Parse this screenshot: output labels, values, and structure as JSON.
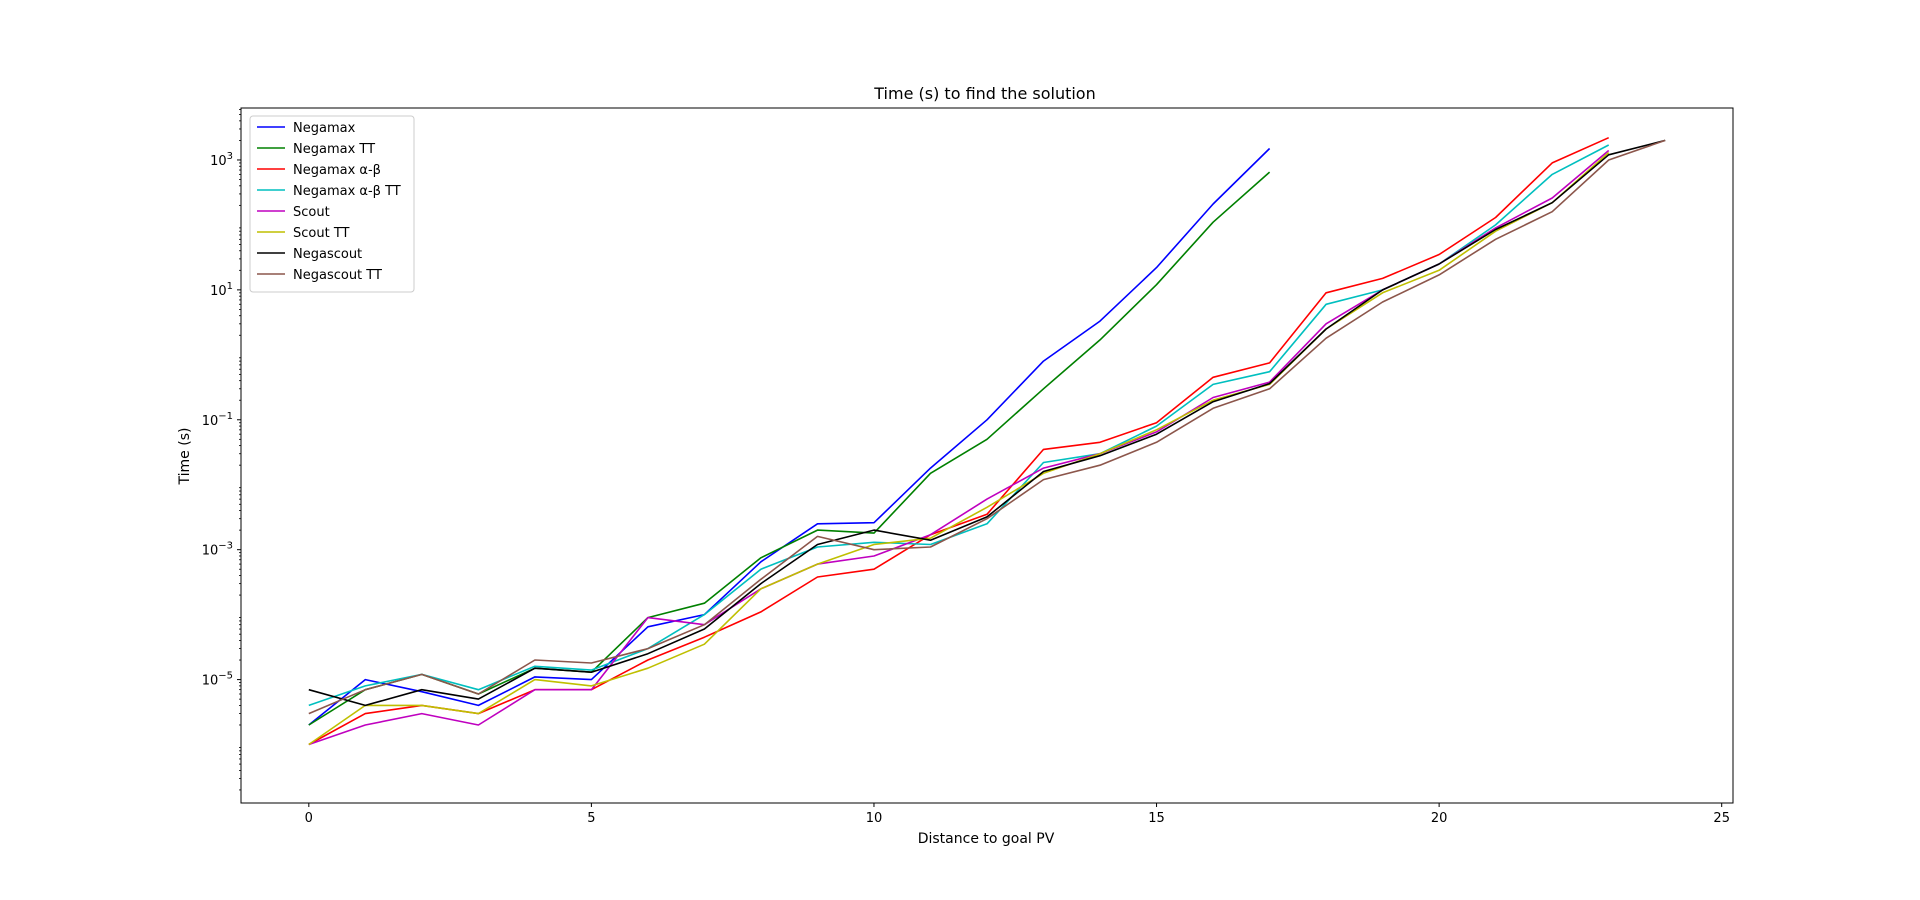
{
  "chart_data": {
    "type": "line",
    "title": "Time (s) to find the solution",
    "xlabel": "Distance to goal PV",
    "ylabel": "Time (s)",
    "yscale": "log",
    "xlim": [
      -1.2,
      25.2
    ],
    "ylim_log10": [
      -6.9,
      3.8
    ],
    "xticks": [
      0,
      5,
      10,
      15,
      20,
      25
    ],
    "xtick_labels": [
      "0",
      "5",
      "10",
      "15",
      "20",
      "25"
    ],
    "yticks_exp": [
      -5,
      -3,
      -1,
      1,
      3
    ],
    "ytick_base": "10",
    "ytick_exp_labels": [
      "−5",
      "−3",
      "−1",
      "1",
      "3"
    ],
    "grid": false,
    "legend_position": "upper left",
    "series": [
      {
        "name": "Negamax",
        "color": "#0000ff",
        "x": [
          0,
          1,
          2,
          3,
          4,
          5,
          6,
          7,
          8,
          9,
          10,
          11,
          12,
          13,
          14,
          15,
          16,
          17
        ],
        "y": [
          2e-06,
          1e-05,
          6.5e-06,
          4e-06,
          1.1e-05,
          1e-05,
          6.5e-05,
          0.0001,
          0.00065,
          0.0025,
          0.0026,
          0.018,
          0.1,
          0.8,
          3.3,
          22,
          210,
          1500
        ]
      },
      {
        "name": "Negamax TT",
        "color": "#008000",
        "x": [
          0,
          1,
          2,
          3,
          4,
          5,
          6,
          7,
          8,
          9,
          10,
          11,
          12,
          13,
          14,
          15,
          16,
          17
        ],
        "y": [
          2e-06,
          7e-06,
          1.2e-05,
          6e-06,
          1.5e-05,
          1.3e-05,
          9e-05,
          0.00015,
          0.00075,
          0.002,
          0.0018,
          0.015,
          0.05,
          0.3,
          1.7,
          12,
          110,
          650
        ]
      },
      {
        "name": "Negamax α-β",
        "color": "#ff0000",
        "x": [
          0,
          1,
          2,
          3,
          4,
          5,
          6,
          7,
          8,
          9,
          10,
          11,
          12,
          13,
          14,
          15,
          16,
          17,
          18,
          19,
          20,
          21,
          22,
          23
        ],
        "y": [
          1e-06,
          3e-06,
          4e-06,
          3e-06,
          7e-06,
          7e-06,
          2e-05,
          4.5e-05,
          0.00011,
          0.00038,
          0.0005,
          0.0017,
          0.0035,
          0.035,
          0.045,
          0.09,
          0.45,
          0.75,
          9,
          15,
          35,
          130,
          900,
          2200
        ]
      },
      {
        "name": "Negamax α-β TT",
        "color": "#00bfbf",
        "x": [
          0,
          1,
          2,
          3,
          4,
          5,
          6,
          7,
          8,
          9,
          10,
          11,
          12,
          13,
          14,
          15,
          16,
          17,
          18,
          19,
          20,
          21,
          22,
          23
        ],
        "y": [
          4e-06,
          8e-06,
          1.2e-05,
          7e-06,
          1.6e-05,
          1.4e-05,
          3e-05,
          0.0001,
          0.0005,
          0.0011,
          0.0013,
          0.0012,
          0.0025,
          0.022,
          0.03,
          0.08,
          0.35,
          0.55,
          6,
          10,
          25,
          100,
          600,
          1700
        ]
      },
      {
        "name": "Scout",
        "color": "#bf00bf",
        "x": [
          0,
          1,
          2,
          3,
          4,
          5,
          6,
          7,
          8,
          9,
          10,
          11,
          12,
          13,
          14,
          15,
          16,
          17,
          18,
          19,
          20,
          21,
          22,
          23
        ],
        "y": [
          1e-06,
          2e-06,
          3e-06,
          2e-06,
          7e-06,
          7e-06,
          9e-05,
          7e-05,
          0.00025,
          0.0006,
          0.0008,
          0.0017,
          0.006,
          0.018,
          0.03,
          0.065,
          0.22,
          0.38,
          3,
          10,
          25,
          90,
          260,
          1400
        ]
      },
      {
        "name": "Scout TT",
        "color": "#bfbf00",
        "x": [
          0,
          1,
          2,
          3,
          4,
          5,
          6,
          7,
          8,
          9,
          10,
          11,
          12,
          13,
          14,
          15,
          16,
          17,
          18,
          19,
          20,
          21,
          22,
          23
        ],
        "y": [
          1e-06,
          4e-06,
          4e-06,
          3e-06,
          1e-05,
          8e-06,
          1.5e-05,
          3.5e-05,
          0.00025,
          0.0006,
          0.0012,
          0.0015,
          0.0045,
          0.015,
          0.03,
          0.07,
          0.2,
          0.35,
          2.5,
          9,
          20,
          80,
          220,
          1300
        ]
      },
      {
        "name": "Negascout",
        "color": "#000000",
        "x": [
          0,
          1,
          2,
          3,
          4,
          5,
          6,
          7,
          8,
          9,
          10,
          11,
          12,
          13,
          14,
          15,
          16,
          17,
          18,
          19,
          20,
          21,
          22,
          23,
          24
        ],
        "y": [
          7e-06,
          4e-06,
          7e-06,
          5e-06,
          1.5e-05,
          1.3e-05,
          2.5e-05,
          6e-05,
          0.0003,
          0.0012,
          0.002,
          0.0014,
          0.0032,
          0.016,
          0.028,
          0.06,
          0.19,
          0.36,
          2.5,
          10,
          25,
          85,
          220,
          1200,
          2000
        ]
      },
      {
        "name": "Negascout TT",
        "color": "#8c564b",
        "x": [
          0,
          1,
          2,
          3,
          4,
          5,
          6,
          7,
          8,
          9,
          10,
          11,
          12,
          13,
          14,
          15,
          16,
          17,
          18,
          19,
          20,
          21,
          22,
          23,
          24
        ],
        "y": [
          3e-06,
          7e-06,
          1.2e-05,
          6e-06,
          2e-05,
          1.8e-05,
          3e-05,
          7e-05,
          0.00035,
          0.0016,
          0.001,
          0.0011,
          0.003,
          0.012,
          0.02,
          0.045,
          0.15,
          0.3,
          1.8,
          6.5,
          17,
          60,
          160,
          1000,
          2000
        ]
      }
    ]
  }
}
